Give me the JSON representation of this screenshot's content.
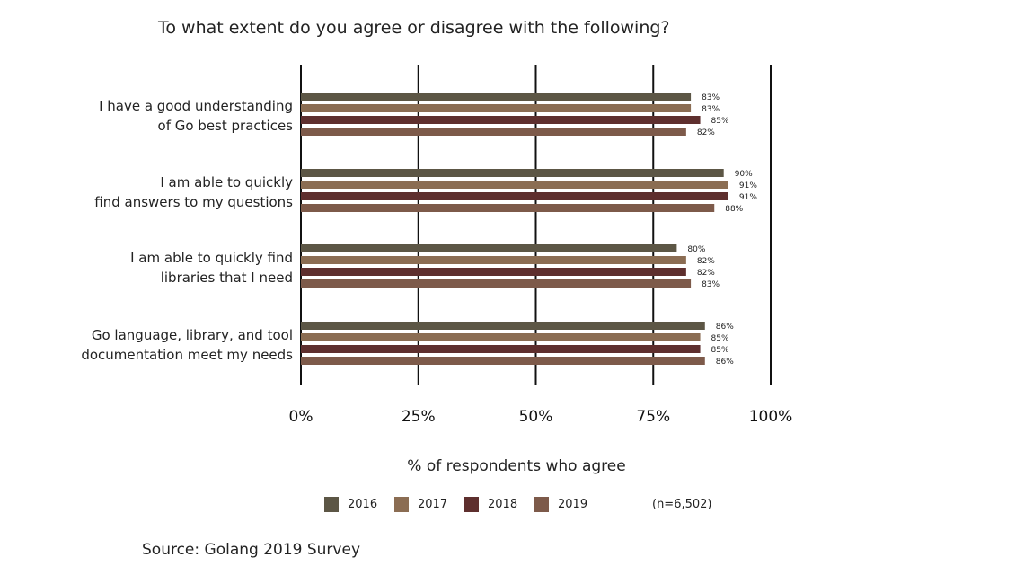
{
  "chart_data": {
    "type": "bar",
    "orientation": "horizontal",
    "title": "To what extent do you agree or disagree with the following?",
    "xlabel": "% of respondents who agree",
    "xlim": [
      0,
      100
    ],
    "xticks": [
      "0%",
      "25%",
      "50%",
      "75%",
      "100%"
    ],
    "grid": true,
    "legend_position": "bottom",
    "categories": [
      [
        "I have a good understanding",
        "of Go best practices"
      ],
      [
        "I am able to quickly",
        "find answers to my questions"
      ],
      [
        "I am able to quickly find",
        "libraries that I need"
      ],
      [
        "Go language, library, and tool",
        "documentation meet my needs"
      ]
    ],
    "series": [
      {
        "name": "2016",
        "color": "#5c5645",
        "values": [
          83,
          90,
          80,
          86
        ]
      },
      {
        "name": "2017",
        "color": "#8b6d53",
        "values": [
          83,
          91,
          82,
          85
        ]
      },
      {
        "name": "2018",
        "color": "#5e2f2e",
        "values": [
          85,
          91,
          82,
          85
        ]
      },
      {
        "name": "2019",
        "color": "#7d5a4a",
        "values": [
          82,
          88,
          83,
          86
        ]
      }
    ],
    "value_labels": [
      [
        "83%",
        "83%",
        "85%",
        "82%"
      ],
      [
        "90%",
        "91%",
        "91%",
        "88%"
      ],
      [
        "80%",
        "82%",
        "82%",
        "83%"
      ],
      [
        "86%",
        "85%",
        "85%",
        "86%"
      ]
    ]
  },
  "sample_size": "(n=6,502)",
  "source": "Source: Golang 2019 Survey"
}
